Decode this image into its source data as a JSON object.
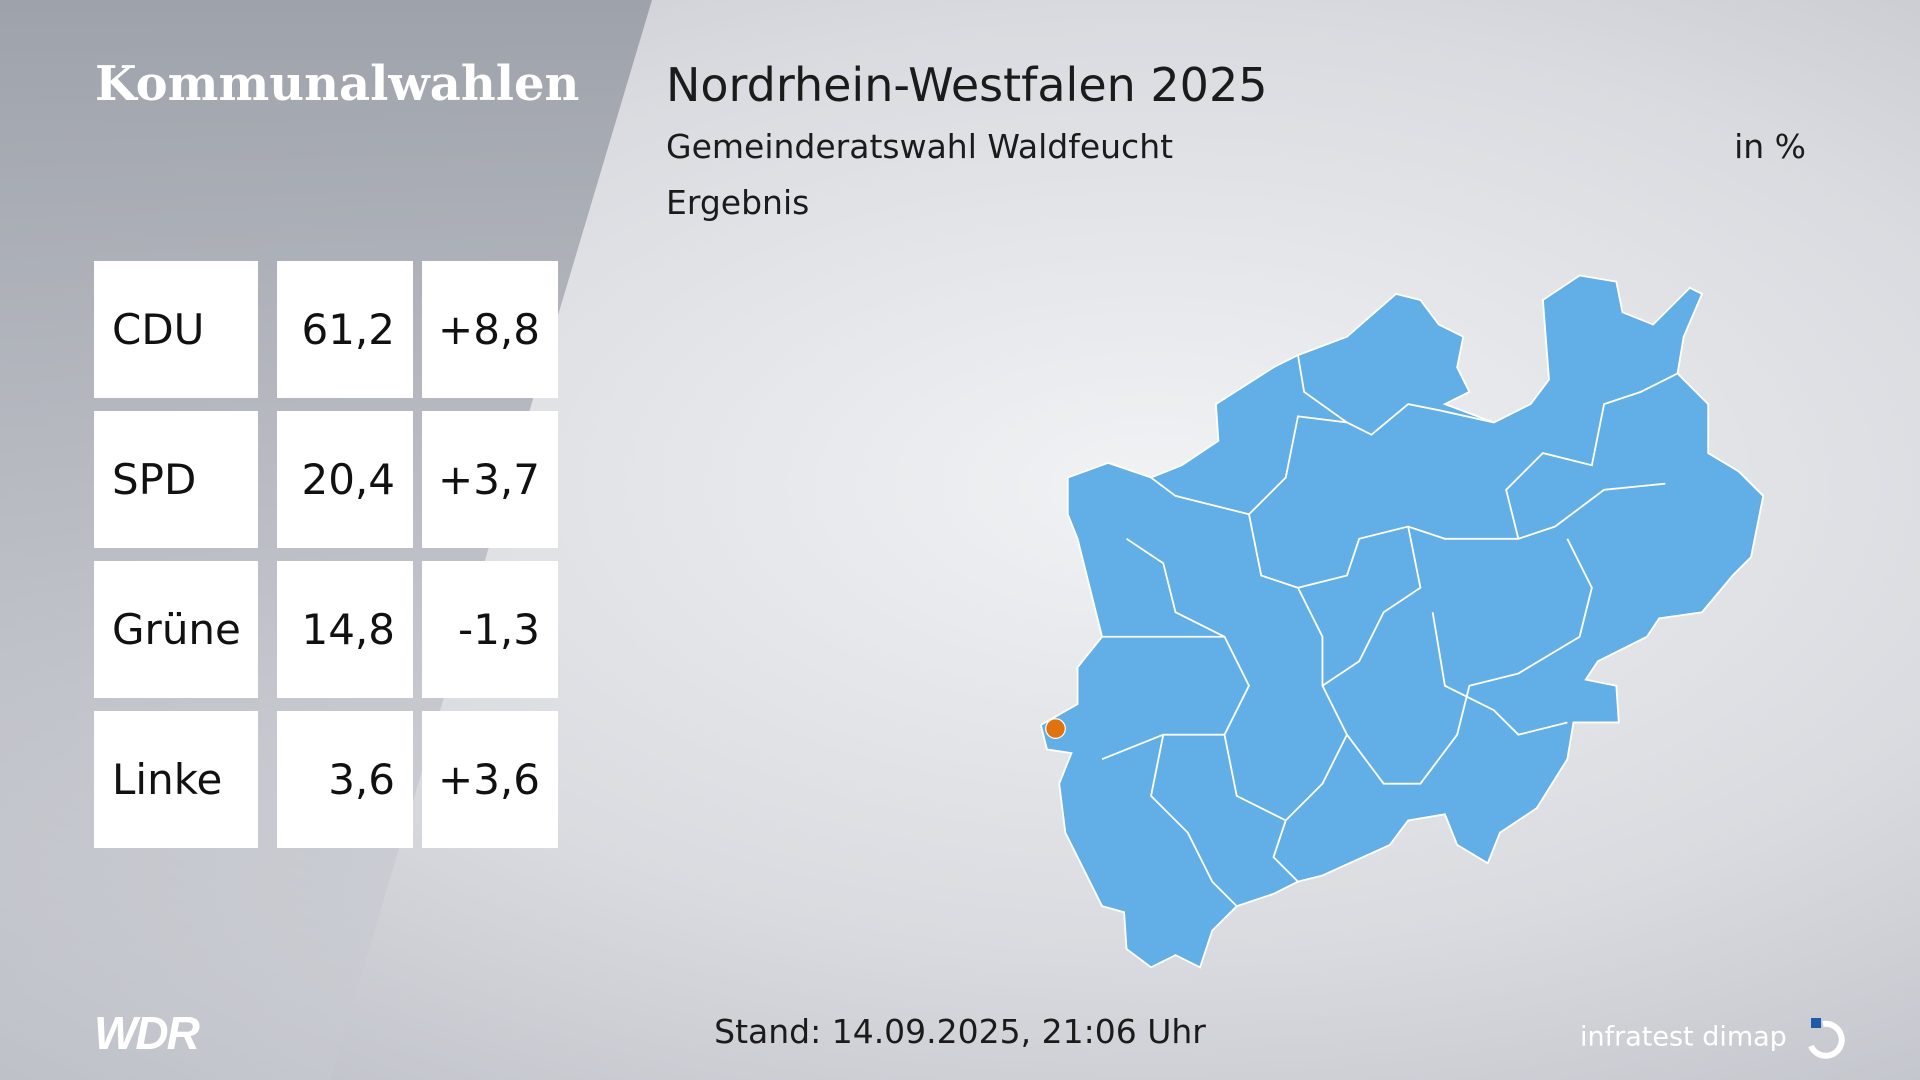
{
  "header": {
    "section": "Kommunalwahlen",
    "title": "Nordrhein-Westfalen 2025",
    "subtitle": "Gemeinderatswahl Waldfeucht",
    "unit": "in %",
    "label": "Ergebnis"
  },
  "table": {
    "rows": [
      [
        "CDU",
        "61,2",
        "+8,8"
      ],
      [
        "SPD",
        "20,4",
        "+3,7"
      ],
      [
        "Grüne",
        "14,8",
        "-1,3"
      ],
      [
        "Linke",
        "3,6",
        "+3,6"
      ]
    ]
  },
  "footer": {
    "timestamp": "Stand: 14.09.2025, 21:06 Uhr",
    "broadcaster": "WDR",
    "institute": "infratest dimap"
  }
}
